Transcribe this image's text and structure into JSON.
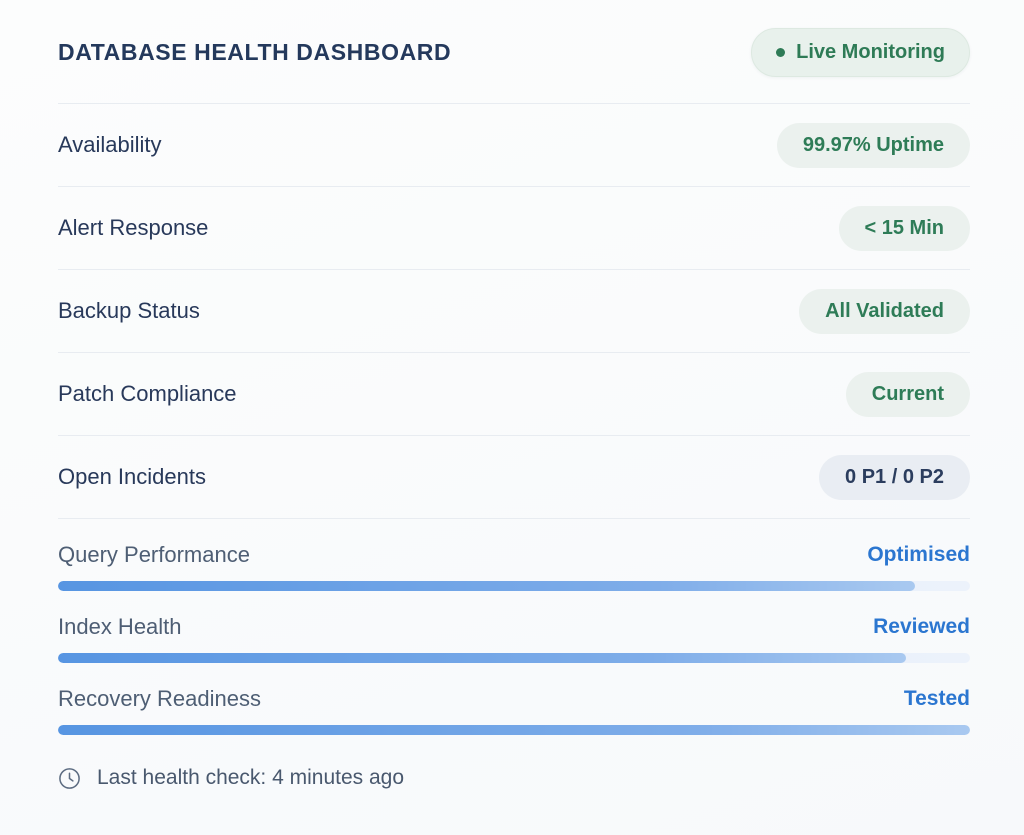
{
  "header": {
    "title": "DATABASE HEALTH DASHBOARD",
    "live_badge": {
      "label": "Live Monitoring"
    }
  },
  "metrics": [
    {
      "label": "Availability",
      "value": "99.97% Uptime",
      "style": "green"
    },
    {
      "label": "Alert Response",
      "value": "< 15 Min",
      "style": "green"
    },
    {
      "label": "Backup Status",
      "value": "All Validated",
      "style": "green"
    },
    {
      "label": "Patch Compliance",
      "value": "Current",
      "style": "green"
    },
    {
      "label": "Open Incidents",
      "value": "0 P1 / 0 P2",
      "style": "neutral"
    }
  ],
  "progress_metrics": [
    {
      "label": "Query Performance",
      "status": "Optimised",
      "percent": 94
    },
    {
      "label": "Index Health",
      "status": "Reviewed",
      "percent": 93
    },
    {
      "label": "Recovery Readiness",
      "status": "Tested",
      "percent": 100
    }
  ],
  "footer": {
    "icon": "clock-icon",
    "text": "Last health check: 4 minutes ago"
  },
  "colors": {
    "title_navy": "#24395c",
    "label_navy": "#28395a",
    "muted_slate": "#4e5e74",
    "green_text": "#2e7c57",
    "green_badge_bg": "#ebf1ee",
    "neutral_badge_bg": "#e9edf3",
    "blue_status": "#2b76d0",
    "bar_fill": "#5795e2",
    "bar_track": "#dbe7f7",
    "divider": "#e8ecf1",
    "background": "#f9fafc"
  }
}
